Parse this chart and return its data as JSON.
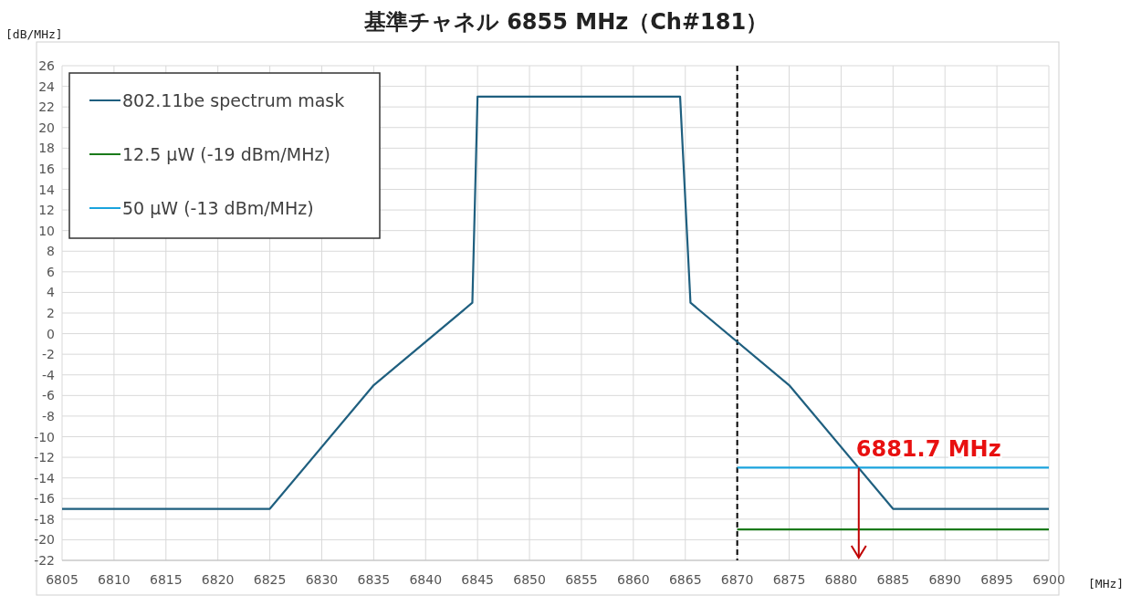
{
  "chart_data": {
    "type": "line",
    "title": "基準チャネル 6855 MHz（Ch#181）",
    "xlabel": "[MHz]",
    "ylabel": "[dB/MHz]",
    "xlim": [
      6805,
      6900
    ],
    "xticks": [
      6805,
      6810,
      6815,
      6820,
      6825,
      6830,
      6835,
      6840,
      6845,
      6850,
      6855,
      6860,
      6865,
      6870,
      6875,
      6880,
      6885,
      6890,
      6895,
      6900
    ],
    "ylim": [
      -22,
      26
    ],
    "yticks": [
      -22,
      -20,
      -18,
      -16,
      -14,
      -12,
      -10,
      -8,
      -6,
      -4,
      -2,
      0,
      2,
      4,
      6,
      8,
      10,
      12,
      14,
      16,
      18,
      20,
      22,
      24,
      26
    ],
    "grid": true,
    "legend": "top left",
    "line_style": "solid",
    "series": [
      {
        "name": "802.11be spectrum mask",
        "color": "#1f5f7f",
        "x": [
          6805,
          6825,
          6835,
          6844.5,
          6845,
          6864.5,
          6865.5,
          6875,
          6885,
          6900
        ],
        "values": [
          -17,
          -17,
          -5,
          3,
          23,
          23,
          3,
          -5,
          -17,
          -17
        ]
      },
      {
        "name": "12.5 µW (-19 dBm/MHz)",
        "color": "#1a7a1a",
        "x": [
          6870,
          6900
        ],
        "values": [
          -19,
          -19
        ]
      },
      {
        "name": "50 µW (-13 dBm/MHz)",
        "color": "#1aa3dd",
        "x": [
          6870,
          6900
        ],
        "values": [
          -13,
          -13
        ]
      }
    ],
    "ref_lines": [
      {
        "axis": "x",
        "value": 6870,
        "color": "#000000",
        "line_style": "dashed"
      }
    ],
    "annotations": [
      {
        "text": "6881.7 MHz",
        "x": 6881.7,
        "y": -13
      }
    ]
  }
}
